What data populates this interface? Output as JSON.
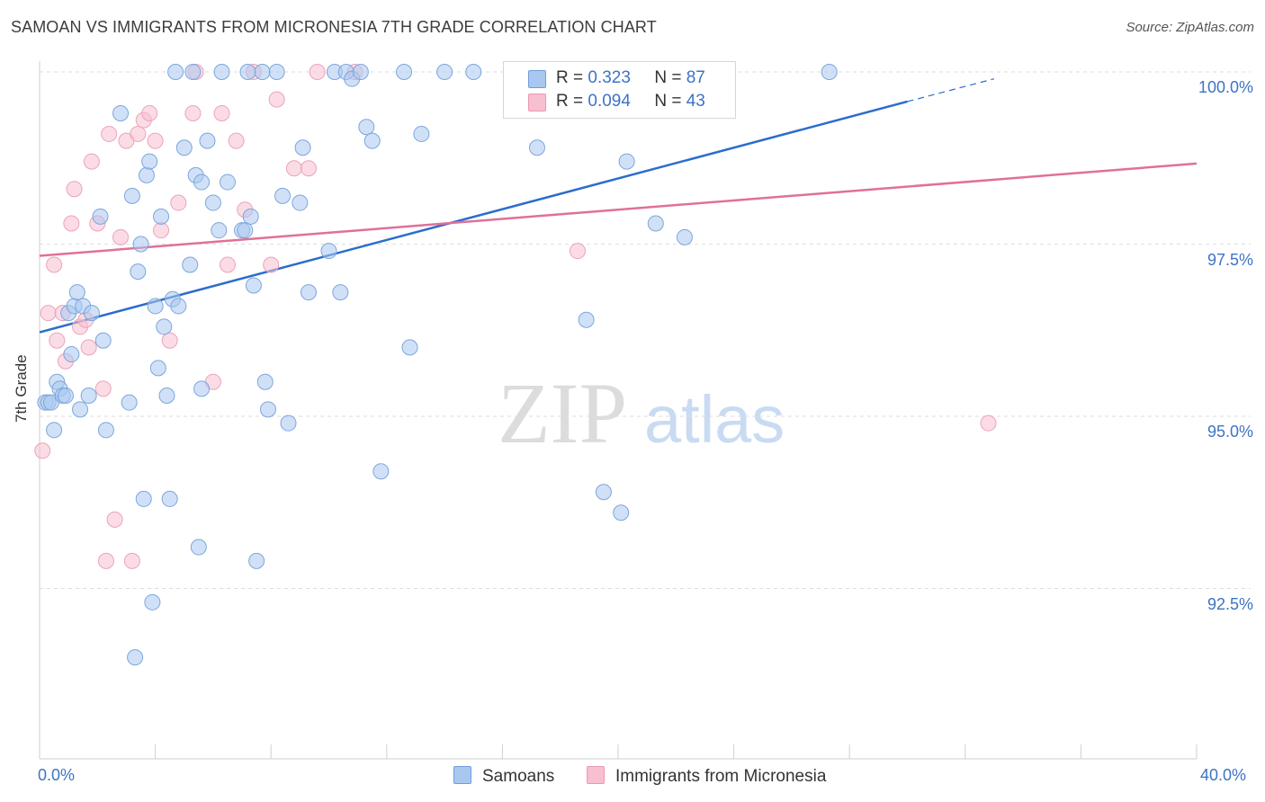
{
  "header": {
    "title": "SAMOAN VS IMMIGRANTS FROM MICRONESIA 7TH GRADE CORRELATION CHART",
    "source": "Source: ZipAtlas.com"
  },
  "watermark": {
    "zip": "ZIP",
    "atlas": "atlas"
  },
  "colors": {
    "samoans_fill": "#a9c8f0",
    "samoans_line": "#2a6dcc",
    "micronesia_fill": "#f7bfd0",
    "micronesia_line": "#e0709a",
    "tick_text": "#3d73c5"
  },
  "legend": {
    "samoans": {
      "r_label": "R =",
      "r_value": "0.323",
      "n_label": "N =",
      "n_value": "87"
    },
    "micronesia": {
      "r_label": "R =",
      "r_value": "0.094",
      "n_label": "N =",
      "n_value": "43"
    }
  },
  "bottom_legend": {
    "samoans": "Samoans",
    "micronesia": "Immigrants from Micronesia"
  },
  "chart_data": {
    "type": "scatter",
    "title": "SAMOAN VS IMMIGRANTS FROM MICRONESIA 7TH GRADE CORRELATION CHART",
    "xlabel": "",
    "ylabel": "7th Grade",
    "xlim": [
      0,
      40
    ],
    "ylim": [
      90.05,
      100.2
    ],
    "x_tick_labels": {
      "min": "0.0%",
      "max": "40.0%"
    },
    "y_ticks": [
      {
        "value": 100.0,
        "label": "100.0%"
      },
      {
        "value": 97.5,
        "label": "97.5%"
      },
      {
        "value": 95.0,
        "label": "95.0%"
      },
      {
        "value": 92.5,
        "label": "92.5%"
      }
    ],
    "series": [
      {
        "name": "Samoans",
        "r": 0.323,
        "n": 87,
        "trend": {
          "x_start": 0,
          "y_start": 96.22,
          "x_end": 30.0,
          "y_end": 99.57,
          "dash_to_x": 33.0,
          "dash_to_y": 99.9
        },
        "points": [
          [
            0.2,
            95.2
          ],
          [
            0.3,
            95.2
          ],
          [
            0.4,
            95.2
          ],
          [
            0.5,
            94.8
          ],
          [
            0.6,
            95.5
          ],
          [
            0.7,
            95.4
          ],
          [
            0.8,
            95.3
          ],
          [
            0.9,
            95.3
          ],
          [
            1.0,
            96.5
          ],
          [
            1.1,
            95.9
          ],
          [
            1.2,
            96.6
          ],
          [
            1.3,
            96.8
          ],
          [
            1.4,
            95.1
          ],
          [
            1.5,
            96.6
          ],
          [
            1.7,
            95.3
          ],
          [
            1.8,
            96.5
          ],
          [
            2.1,
            97.9
          ],
          [
            2.2,
            96.1
          ],
          [
            2.8,
            99.4
          ],
          [
            3.1,
            95.2
          ],
          [
            3.2,
            98.2
          ],
          [
            3.3,
            91.5
          ],
          [
            3.4,
            97.1
          ],
          [
            3.5,
            97.5
          ],
          [
            3.6,
            93.8
          ],
          [
            3.7,
            98.5
          ],
          [
            3.8,
            98.7
          ],
          [
            3.9,
            92.3
          ],
          [
            4.0,
            96.6
          ],
          [
            4.1,
            95.7
          ],
          [
            4.2,
            97.9
          ],
          [
            4.3,
            96.3
          ],
          [
            4.4,
            95.3
          ],
          [
            4.5,
            93.8
          ],
          [
            4.6,
            96.7
          ],
          [
            4.7,
            100.0
          ],
          [
            4.8,
            96.6
          ],
          [
            5.0,
            98.9
          ],
          [
            5.2,
            97.2
          ],
          [
            5.3,
            100.0
          ],
          [
            5.4,
            98.5
          ],
          [
            5.5,
            93.1
          ],
          [
            5.6,
            98.4
          ],
          [
            5.8,
            99.0
          ],
          [
            6.0,
            98.1
          ],
          [
            6.2,
            97.7
          ],
          [
            6.3,
            100.0
          ],
          [
            6.5,
            98.4
          ],
          [
            7.0,
            97.7
          ],
          [
            7.1,
            97.7
          ],
          [
            7.2,
            100.0
          ],
          [
            7.3,
            97.9
          ],
          [
            7.4,
            96.9
          ],
          [
            7.5,
            92.9
          ],
          [
            7.7,
            100.0
          ],
          [
            7.8,
            95.5
          ],
          [
            7.9,
            95.1
          ],
          [
            8.2,
            100.0
          ],
          [
            8.4,
            98.2
          ],
          [
            8.6,
            94.9
          ],
          [
            9.0,
            98.1
          ],
          [
            9.1,
            98.9
          ],
          [
            9.3,
            96.8
          ],
          [
            10.0,
            97.4
          ],
          [
            10.2,
            100.0
          ],
          [
            10.4,
            96.8
          ],
          [
            10.6,
            100.0
          ],
          [
            10.8,
            99.9
          ],
          [
            11.1,
            100.0
          ],
          [
            11.3,
            99.2
          ],
          [
            11.5,
            99.0
          ],
          [
            11.8,
            94.2
          ],
          [
            12.6,
            100.0
          ],
          [
            12.8,
            96.0
          ],
          [
            13.2,
            99.1
          ],
          [
            14.0,
            100.0
          ],
          [
            15.0,
            100.0
          ],
          [
            17.2,
            98.9
          ],
          [
            18.9,
            96.4
          ],
          [
            19.5,
            93.9
          ],
          [
            20.1,
            93.6
          ],
          [
            20.3,
            98.7
          ],
          [
            21.3,
            97.8
          ],
          [
            22.3,
            97.6
          ],
          [
            27.3,
            100.0
          ],
          [
            2.3,
            94.8
          ],
          [
            5.6,
            95.4
          ]
        ]
      },
      {
        "name": "Immigrants from Micronesia",
        "r": 0.094,
        "n": 43,
        "trend": {
          "x_start": 0,
          "y_start": 97.33,
          "x_end": 40.0,
          "y_end": 98.67
        },
        "points": [
          [
            0.1,
            94.5
          ],
          [
            0.3,
            96.5
          ],
          [
            0.5,
            97.2
          ],
          [
            0.6,
            96.1
          ],
          [
            0.8,
            96.5
          ],
          [
            0.9,
            95.8
          ],
          [
            1.1,
            97.8
          ],
          [
            1.2,
            98.3
          ],
          [
            1.4,
            96.3
          ],
          [
            1.6,
            96.4
          ],
          [
            1.7,
            96.0
          ],
          [
            1.8,
            98.7
          ],
          [
            2.0,
            97.8
          ],
          [
            2.2,
            95.4
          ],
          [
            2.3,
            92.9
          ],
          [
            2.4,
            99.1
          ],
          [
            2.6,
            93.5
          ],
          [
            2.8,
            97.6
          ],
          [
            3.0,
            99.0
          ],
          [
            3.2,
            92.9
          ],
          [
            3.4,
            99.1
          ],
          [
            3.6,
            99.3
          ],
          [
            3.8,
            99.4
          ],
          [
            4.0,
            99.0
          ],
          [
            4.2,
            97.7
          ],
          [
            4.5,
            96.1
          ],
          [
            4.8,
            98.1
          ],
          [
            5.3,
            99.4
          ],
          [
            5.4,
            100.0
          ],
          [
            6.0,
            95.5
          ],
          [
            6.3,
            99.4
          ],
          [
            6.5,
            97.2
          ],
          [
            6.8,
            99.0
          ],
          [
            7.1,
            98.0
          ],
          [
            7.4,
            100.0
          ],
          [
            8.0,
            97.2
          ],
          [
            8.2,
            99.6
          ],
          [
            8.8,
            98.6
          ],
          [
            9.3,
            98.6
          ],
          [
            9.6,
            100.0
          ],
          [
            10.9,
            100.0
          ],
          [
            18.6,
            97.4
          ],
          [
            32.8,
            94.9
          ]
        ]
      }
    ],
    "legend_position": "top-center"
  }
}
